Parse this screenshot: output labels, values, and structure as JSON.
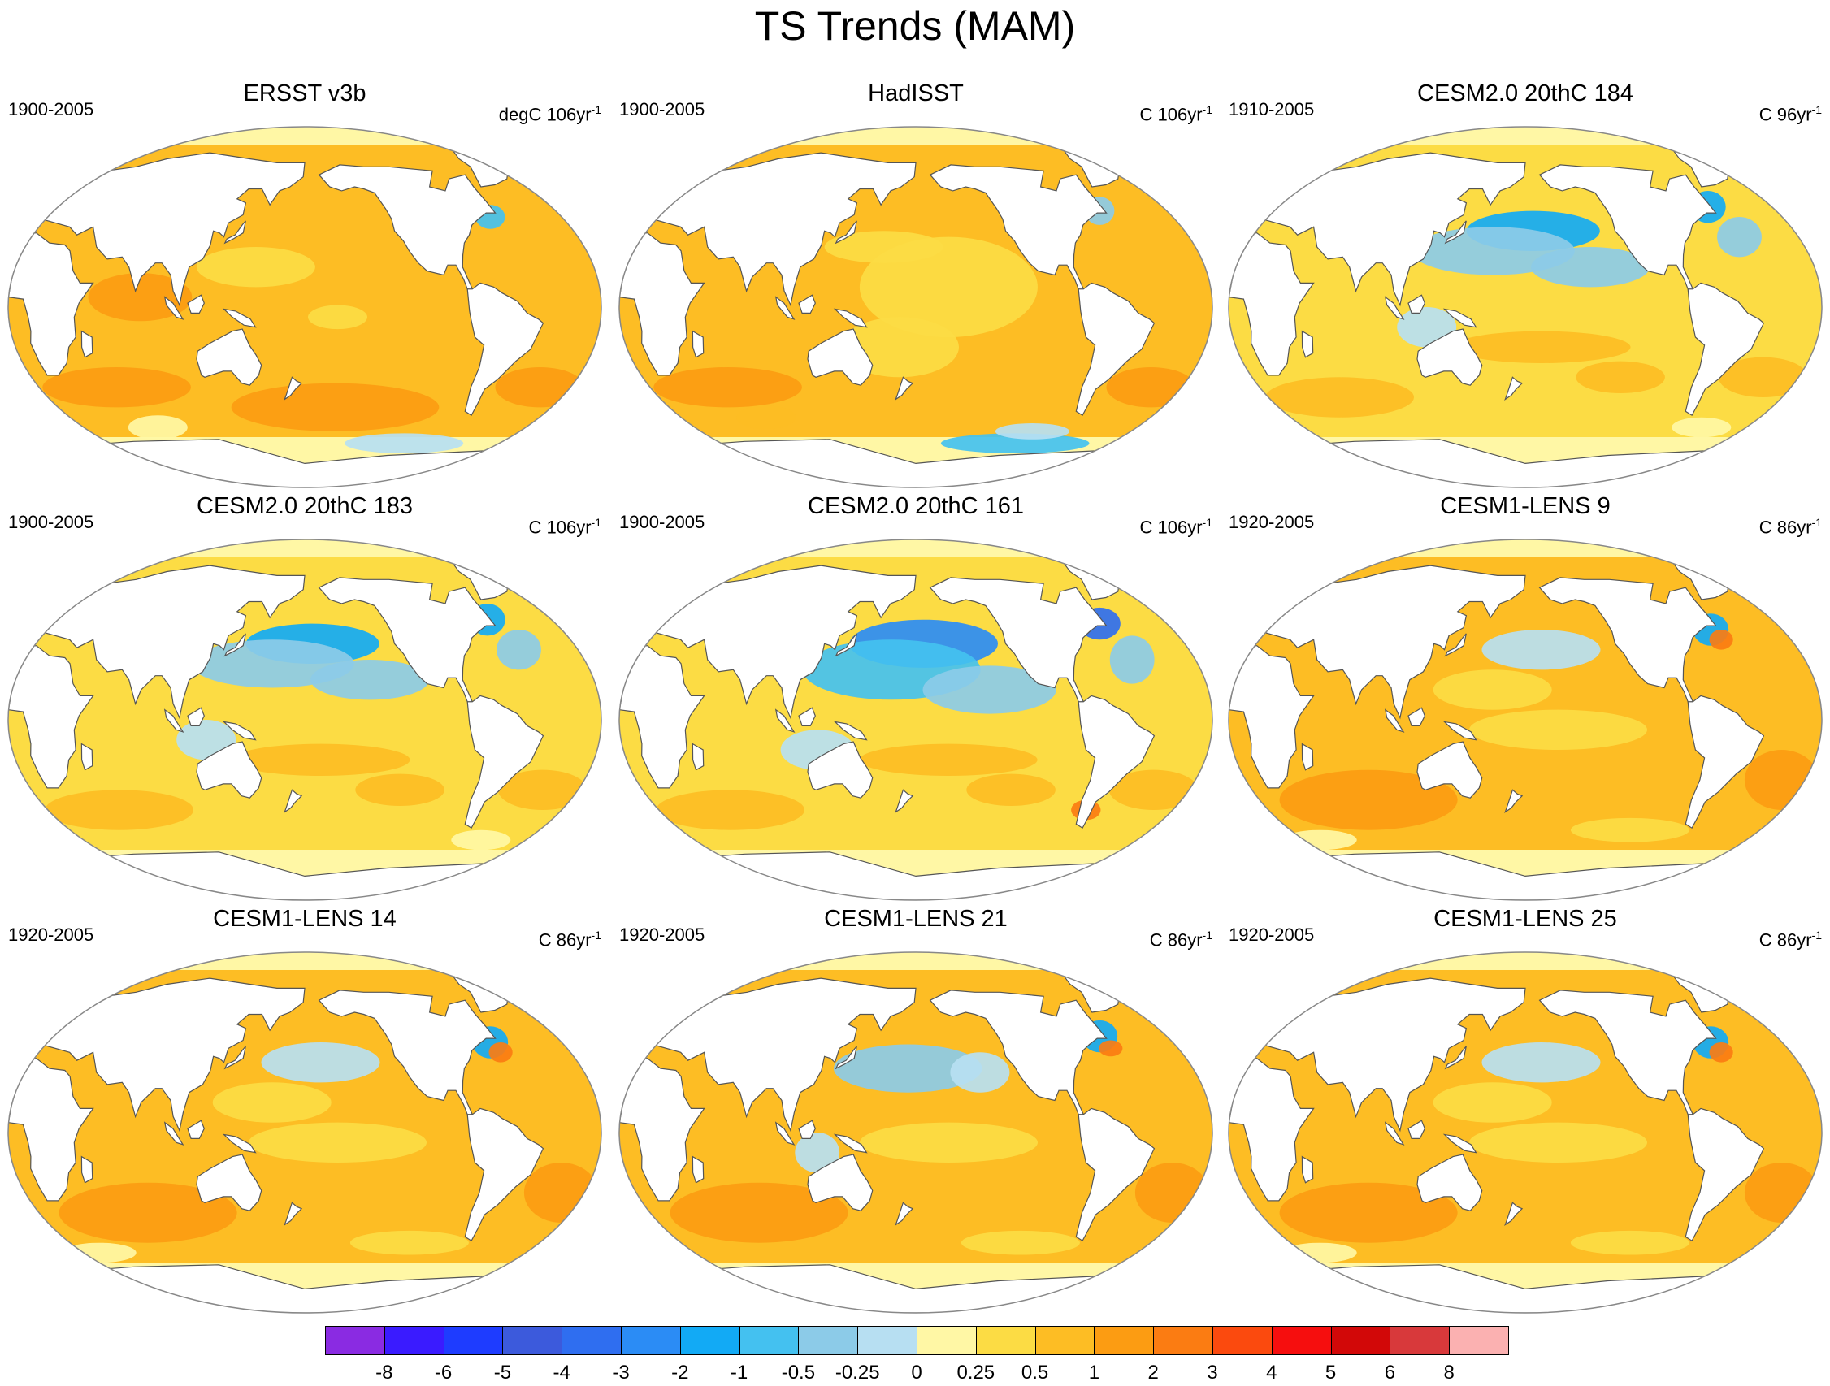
{
  "title": "TS Trends (MAM)",
  "panels": [
    {
      "name": "ERSST v3b",
      "period": "1900-2005",
      "units_prefix": "degC 106yr",
      "units_exp": "-1",
      "pattern": "warm"
    },
    {
      "name": "HadISST",
      "period": "1900-2005",
      "units_prefix": "C 106yr",
      "units_exp": "-1",
      "pattern": "warm_speckled"
    },
    {
      "name": "CESM2.0 20thC 184",
      "period": "1910-2005",
      "units_prefix": "C 96yr",
      "units_exp": "-1",
      "pattern": "cool_north_pacific"
    },
    {
      "name": "CESM2.0 20thC 183",
      "period": "1900-2005",
      "units_prefix": "C 106yr",
      "units_exp": "-1",
      "pattern": "cool_north_pacific"
    },
    {
      "name": "CESM2.0 20thC 161",
      "period": "1900-2005",
      "units_prefix": "C 106yr",
      "units_exp": "-1",
      "pattern": "cool_north_pacific_strong"
    },
    {
      "name": "CESM1-LENS 9",
      "period": "1920-2005",
      "units_prefix": "C 86yr",
      "units_exp": "-1",
      "pattern": "lens"
    },
    {
      "name": "CESM1-LENS 14",
      "period": "1920-2005",
      "units_prefix": "C 86yr",
      "units_exp": "-1",
      "pattern": "lens"
    },
    {
      "name": "CESM1-LENS 21",
      "period": "1920-2005",
      "units_prefix": "C 86yr",
      "units_exp": "-1",
      "pattern": "lens_cool_np"
    },
    {
      "name": "CESM1-LENS 25",
      "period": "1920-2005",
      "units_prefix": "C 86yr",
      "units_exp": "-1",
      "pattern": "lens"
    }
  ],
  "colorbar": {
    "labels": [
      "-8",
      "-6",
      "-5",
      "-4",
      "-3",
      "-2",
      "-1",
      "-0.5",
      "-0.25",
      "0",
      "0.25",
      "0.5",
      "1",
      "2",
      "3",
      "4",
      "5",
      "6",
      "8"
    ],
    "colors": [
      "#8a2be2",
      "#3a1bff",
      "#1e3cff",
      "#3c5adc",
      "#2f6ef0",
      "#2b8cf5",
      "#12aaf5",
      "#44c1f0",
      "#8ccbe8",
      "#b7dff2",
      "#fff7a5",
      "#fcdc44",
      "#fdbd24",
      "#fc9c12",
      "#fb7c12",
      "#fb4a0e",
      "#f60e0e",
      "#d20808",
      "#d8393b",
      "#fbb1b1"
    ]
  },
  "legend_colors": {
    "land": "#ffffff",
    "coastline": "#555555",
    "frame": "#888888"
  }
}
